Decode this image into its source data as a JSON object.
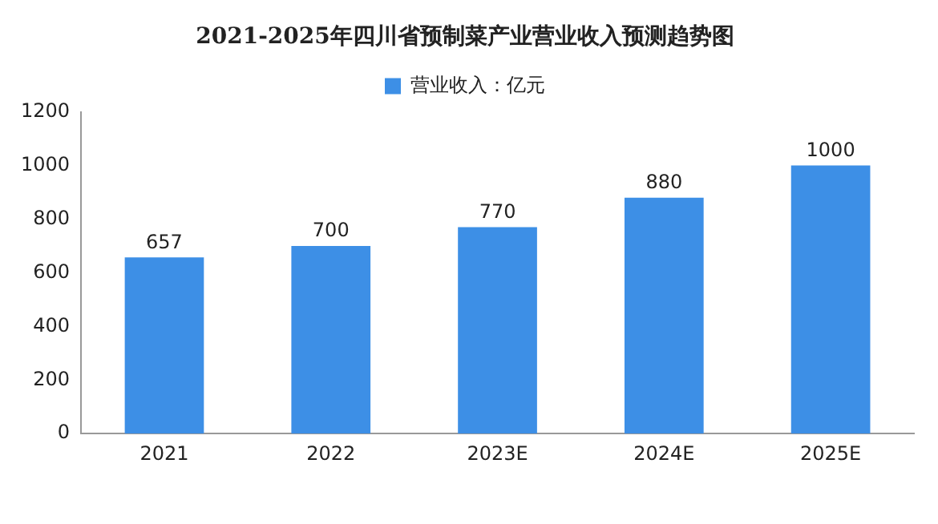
{
  "chart_data": {
    "type": "bar",
    "title": "2021-2025年四川省预制菜产业营业收入预测趋势图",
    "categories": [
      "2021",
      "2022",
      "2023E",
      "2024E",
      "2025E"
    ],
    "series": [
      {
        "name": "营业收入：亿元",
        "color": "#3d8fe6",
        "values": [
          657,
          700,
          770,
          880,
          1000
        ]
      }
    ],
    "ylim": [
      0,
      1200
    ],
    "yticks": [
      0,
      200,
      400,
      600,
      800,
      1000,
      1200
    ],
    "grid": false,
    "legend": "top",
    "data_labels": true
  }
}
